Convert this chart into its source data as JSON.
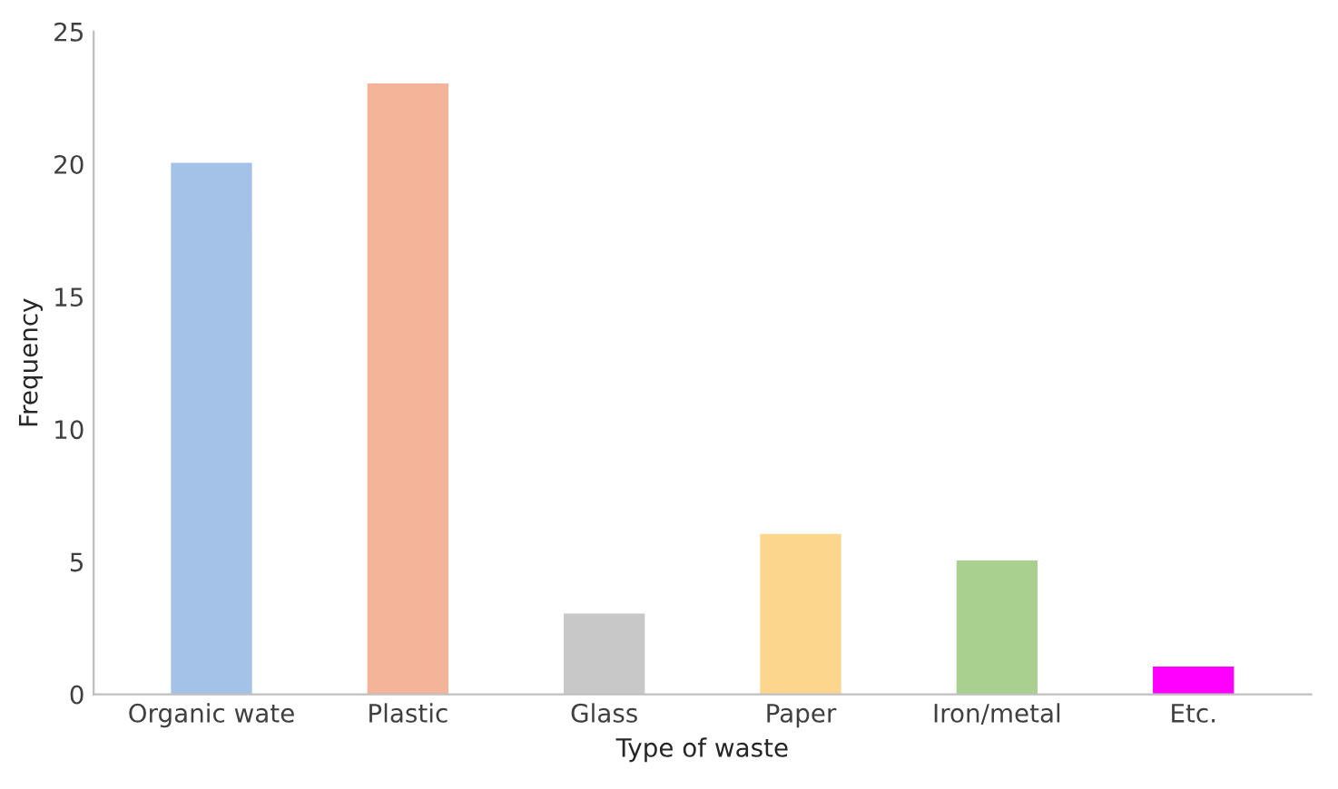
{
  "chart_data": {
    "type": "bar",
    "categories": [
      "Organic wate",
      "Plastic",
      "Glass",
      "Paper",
      "Iron/metal",
      "Etc."
    ],
    "values": [
      20,
      23,
      3,
      6,
      5,
      1
    ],
    "colors": [
      "#a4c2e8",
      "#f4b49a",
      "#c8c8c8",
      "#fdd68e",
      "#a9d08e",
      "#ff00ff"
    ],
    "xlabel": "Type of waste",
    "ylabel": "Frequency",
    "ylim": [
      0,
      25
    ],
    "yticks": [
      0,
      5,
      10,
      15,
      20,
      25
    ],
    "grid": false,
    "legend": false
  }
}
